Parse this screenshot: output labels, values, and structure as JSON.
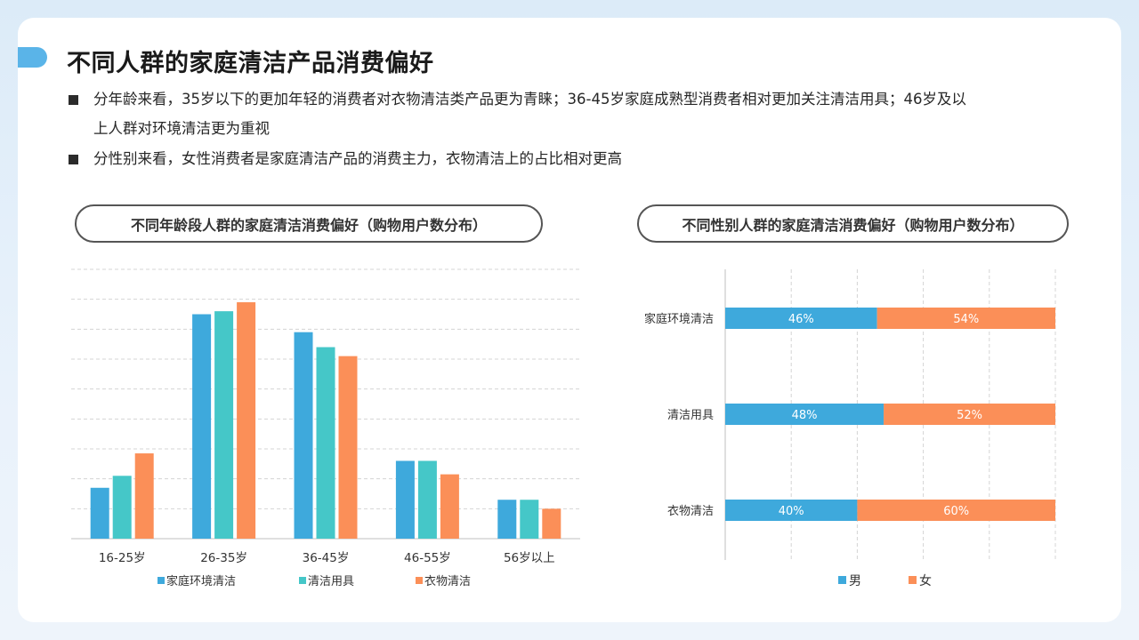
{
  "page_title": "不同人群的家庭清洁产品消费偏好",
  "bullets": [
    {
      "line1": "分年龄来看，35岁以下的更加年轻的消费者对衣物清洁类产品更为青睐；36-45岁家庭成熟型消费者相对更加关注清洁用具；46岁及以",
      "line2": "上人群对环境清洁更为重视"
    },
    {
      "line1": "分性别来看，女性消费者是家庭清洁产品的消费主力，衣物清洁上的占比相对更高"
    }
  ],
  "colors": {
    "blue": "#3ea9dc",
    "teal": "#45c7c8",
    "orange": "#fb8f58",
    "grid": "#d4d4d4",
    "axis": "#bfbfbf"
  },
  "chart_data": [
    {
      "type": "bar",
      "title": "不同年龄段人群的家庭清洁消费偏好（购物用户数分布）",
      "categories": [
        "16-25岁",
        "26-35岁",
        "36-45岁",
        "46-55岁",
        "56岁以上"
      ],
      "series": [
        {
          "name": "家庭环境清洁",
          "values": [
            17,
            75,
            69,
            26,
            13
          ],
          "color": "#3ea9dc"
        },
        {
          "name": "清洁用具",
          "values": [
            21,
            76,
            64,
            26,
            13
          ],
          "color": "#45c7c8"
        },
        {
          "name": "衣物清洁",
          "values": [
            28.5,
            79,
            61,
            21.5,
            10
          ],
          "color": "#fb8f58"
        }
      ],
      "ylim": [
        0,
        90
      ],
      "grid": true,
      "legend": "bottom"
    },
    {
      "type": "bar",
      "orientation": "horizontal",
      "stacked": true,
      "title": "不同性别人群的家庭清洁消费偏好（购物用户数分布）",
      "categories": [
        "家庭环境清洁",
        "清洁用具",
        "衣物清洁"
      ],
      "series": [
        {
          "name": "男",
          "values": [
            46,
            48,
            40
          ],
          "labels": [
            "46%",
            "48%",
            "40%"
          ],
          "color": "#3ea9dc"
        },
        {
          "name": "女",
          "values": [
            54,
            52,
            60
          ],
          "labels": [
            "54%",
            "52%",
            "60%"
          ],
          "color": "#fb8f58"
        }
      ],
      "xlim": [
        0,
        100
      ],
      "grid": true,
      "legend": "bottom"
    }
  ]
}
